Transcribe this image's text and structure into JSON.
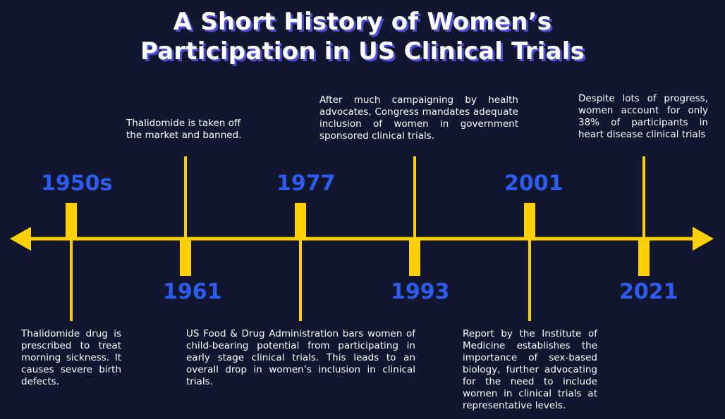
{
  "title": {
    "line1": "A Short History of Women’s",
    "line2": "Participation in US Clinical Trials"
  },
  "colors": {
    "background": "#10172e",
    "timeline": "#ffd100",
    "year": "#2f5cf0",
    "text": "#ffffff",
    "title_shadow": "#4b4bd6"
  },
  "events": [
    {
      "year": "1950s",
      "text": "Thalidomide drug is prescribed to treat morning sickness. It causes severe birth defects."
    },
    {
      "year": "1961",
      "text": "Thalidomide is taken off the market and banned."
    },
    {
      "year": "1977",
      "text": "US Food & Drug Administration bars women of child-bearing potential from participating in early stage clinical trials. This leads to an overall drop in women’s inclusion in clinical trials."
    },
    {
      "year": "1993",
      "text": "After much campaigning by health advocates, Congress mandates adequate inclusion of women in government sponsored clinical trials."
    },
    {
      "year": "2001",
      "text": "Report by the Institute of Medicine establishes the importance of sex-based biology, further advocating for the need to include women in clinical trials at representative levels."
    },
    {
      "year": "2021",
      "text": "Despite lots of progress, women account for only 38% of participants in heart disease clinical trials"
    }
  ]
}
